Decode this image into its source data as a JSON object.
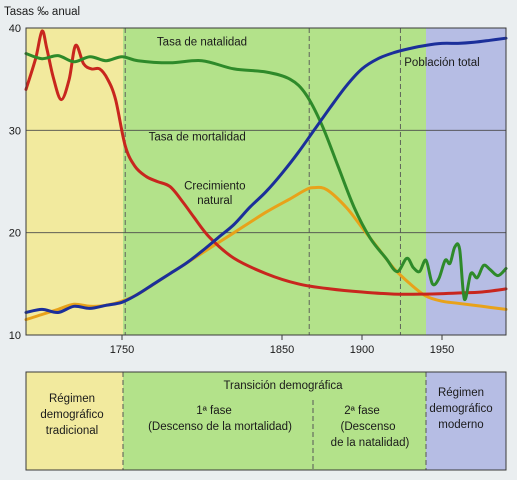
{
  "chart_data": {
    "type": "line",
    "ylabel": "Tasas ‰ anual",
    "x_ticks": [
      1750,
      1850,
      1900,
      1950
    ],
    "y_ticks": [
      10,
      20,
      30,
      40
    ],
    "xlim": [
      1690,
      1990
    ],
    "ylim": [
      10,
      40
    ],
    "grid": "horizontal",
    "background_bands": [
      {
        "name": "tradicional",
        "from": 1690,
        "to": 1752,
        "color": "#f2ea9e"
      },
      {
        "name": "transicion",
        "from": 1752,
        "to": 1924,
        "color": "#b3e28a"
      },
      {
        "name": "moderno",
        "from": 1924,
        "to": 1990,
        "color": "#b6bde4"
      }
    ],
    "phase_dividers": [
      1752,
      1867,
      1924
    ],
    "series": [
      {
        "name": "Tasa de natalidad",
        "color": "#2e8a2a",
        "x": [
          1690,
          1700,
          1710,
          1720,
          1730,
          1740,
          1750,
          1760,
          1780,
          1800,
          1820,
          1840,
          1855,
          1865,
          1875,
          1885,
          1895,
          1905,
          1915,
          1922,
          1928,
          1932,
          1936,
          1940,
          1944,
          1948,
          1952,
          1955,
          1958,
          1961,
          1964,
          1968,
          1972,
          1976,
          1980,
          1985,
          1990
        ],
        "values": [
          37.5,
          37.0,
          37.3,
          36.7,
          37.2,
          36.8,
          37.2,
          36.8,
          36.6,
          36.8,
          36.0,
          35.7,
          35.0,
          33.5,
          30.5,
          26.5,
          22.5,
          19.5,
          17.5,
          16.2,
          17.5,
          16.6,
          16.2,
          17.3,
          15.0,
          15.5,
          17.3,
          17.0,
          18.6,
          18.4,
          13.5,
          16.0,
          15.6,
          16.8,
          16.4,
          15.8,
          16.5
        ]
      },
      {
        "name": "Tasa de mortalidad",
        "color": "#c8261e",
        "x": [
          1690,
          1696,
          1700,
          1703,
          1707,
          1712,
          1717,
          1721,
          1726,
          1731,
          1736,
          1741,
          1746,
          1752,
          1758,
          1765,
          1772,
          1780,
          1788,
          1795,
          1805,
          1820,
          1840,
          1860,
          1880,
          1900,
          1920,
          1940,
          1960,
          1975,
          1990
        ],
        "values": [
          34.0,
          37.0,
          39.7,
          38.0,
          35.2,
          33.0,
          35.0,
          38.3,
          36.5,
          36.0,
          36.0,
          35.0,
          33.0,
          28.5,
          26.5,
          25.5,
          25.0,
          24.5,
          23.0,
          21.5,
          19.5,
          17.5,
          16.0,
          15.0,
          14.5,
          14.2,
          14.0,
          14.0,
          14.1,
          14.2,
          14.5
        ]
      },
      {
        "name": "Crecimiento natural",
        "color": "#e8a21a",
        "x": [
          1690,
          1700,
          1710,
          1720,
          1730,
          1740,
          1750,
          1760,
          1780,
          1800,
          1820,
          1840,
          1855,
          1865,
          1870,
          1878,
          1890,
          1900,
          1910,
          1920,
          1930,
          1940,
          1950,
          1960,
          1975,
          1990
        ],
        "values": [
          11.5,
          12.0,
          12.5,
          13.0,
          12.8,
          12.9,
          13.3,
          14.0,
          16.0,
          18.0,
          20.0,
          22.0,
          23.3,
          24.2,
          24.4,
          24.2,
          22.5,
          20.5,
          18.5,
          16.5,
          15.0,
          13.8,
          13.3,
          13.1,
          12.8,
          12.5
        ]
      },
      {
        "name": "Población total",
        "color": "#1b2f9a",
        "x": [
          1690,
          1700,
          1710,
          1720,
          1730,
          1740,
          1750,
          1760,
          1770,
          1780,
          1790,
          1800,
          1810,
          1820,
          1830,
          1840,
          1850,
          1860,
          1870,
          1880,
          1890,
          1900,
          1910,
          1920,
          1930,
          1940,
          1950,
          1960,
          1970,
          1980,
          1990
        ],
        "values": [
          12.2,
          12.5,
          12.2,
          12.8,
          12.6,
          12.9,
          13.2,
          14.0,
          15.0,
          16.0,
          17.0,
          18.2,
          19.5,
          20.8,
          22.5,
          24.0,
          25.8,
          27.8,
          30.0,
          32.2,
          34.3,
          36.0,
          37.0,
          37.6,
          38.0,
          38.3,
          38.5,
          38.5,
          38.6,
          38.8,
          39.0
        ]
      }
    ],
    "annotations": [
      {
        "text": "Tasa de natalidad",
        "x": 1800,
        "y": 38.3
      },
      {
        "text": "Población total",
        "x": 1950,
        "y": 36.3
      },
      {
        "text": "Tasa de mortalidad",
        "x": 1797,
        "y": 29.0
      },
      {
        "text": "Crecimiento",
        "x": 1808,
        "y": 24.2
      },
      {
        "text": "natural",
        "x": 1808,
        "y": 22.8
      }
    ]
  },
  "phases": {
    "tradicional": [
      "Régimen",
      "demográfico",
      "tradicional"
    ],
    "transicion_title": "Transición demográfica",
    "fase1": [
      "1ª fase",
      "(Descenso de la mortalidad)"
    ],
    "fase2": [
      "2ª fase",
      "(Descenso",
      "de la natalidad)"
    ],
    "moderno": [
      "Régimen",
      "demográfico",
      "moderno"
    ]
  }
}
